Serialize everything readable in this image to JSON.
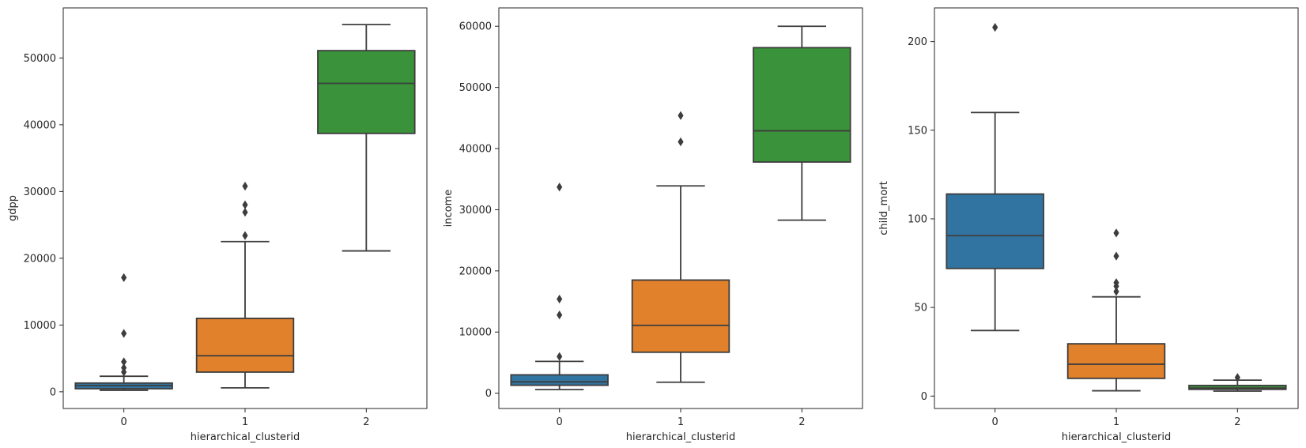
{
  "chart_data": [
    {
      "type": "box",
      "xlabel": "hierarchical_clusterid",
      "ylabel": "gdpp",
      "categories": [
        "0",
        "1",
        "2"
      ],
      "ylim": [
        -2500,
        57500
      ],
      "yticks": [
        0,
        10000,
        20000,
        30000,
        40000,
        50000
      ],
      "boxes": [
        {
          "category": "0",
          "color": "#3274a1",
          "whisker_low": 231,
          "q1": 465,
          "median": 932,
          "q3": 1310,
          "whisker_high": 2330,
          "outliers": [
            2960,
            3600,
            4500,
            8750,
            17100
          ]
        },
        {
          "category": "1",
          "color": "#e1812c",
          "whisker_low": 590,
          "q1": 2950,
          "median": 5400,
          "q3": 11000,
          "whisker_high": 22500,
          "outliers": [
            23400,
            26900,
            28000,
            30800
          ]
        },
        {
          "category": "2",
          "color": "#3a923a",
          "whisker_low": 21100,
          "q1": 38700,
          "median": 46200,
          "q3": 51100,
          "whisker_high": 55000,
          "outliers": []
        }
      ]
    },
    {
      "type": "box",
      "xlabel": "hierarchical_clusterid",
      "ylabel": "income",
      "categories": [
        "0",
        "1",
        "2"
      ],
      "ylim": [
        -2500,
        63000
      ],
      "yticks": [
        0,
        10000,
        20000,
        30000,
        40000,
        50000,
        60000
      ],
      "boxes": [
        {
          "category": "0",
          "color": "#3274a1",
          "whisker_low": 600,
          "q1": 1300,
          "median": 1850,
          "q3": 3000,
          "whisker_high": 5200,
          "outliers": [
            6000,
            12800,
            15400,
            33700
          ]
        },
        {
          "category": "1",
          "color": "#e1812c",
          "whisker_low": 1800,
          "q1": 6700,
          "median": 11100,
          "q3": 18500,
          "whisker_high": 33900,
          "outliers": [
            41100,
            45400
          ]
        },
        {
          "category": "2",
          "color": "#3a923a",
          "whisker_low": 28300,
          "q1": 37800,
          "median": 42900,
          "q3": 56500,
          "whisker_high": 60000,
          "outliers": []
        }
      ]
    },
    {
      "type": "box",
      "xlabel": "hierarchical_clusterid",
      "ylabel": "child_mort",
      "categories": [
        "0",
        "1",
        "2"
      ],
      "ylim": [
        -7,
        219
      ],
      "yticks": [
        0,
        50,
        100,
        150,
        200
      ],
      "boxes": [
        {
          "category": "0",
          "color": "#3274a1",
          "whisker_low": 37,
          "q1": 72,
          "median": 90.5,
          "q3": 114,
          "whisker_high": 160,
          "outliers": [
            208
          ]
        },
        {
          "category": "1",
          "color": "#e1812c",
          "whisker_low": 3,
          "q1": 10,
          "median": 18,
          "q3": 29.5,
          "whisker_high": 56,
          "outliers": [
            59,
            62,
            64,
            79,
            92
          ]
        },
        {
          "category": "2",
          "color": "#3a923a",
          "whisker_low": 2.8,
          "q1": 3.8,
          "median": 4.5,
          "q3": 6,
          "whisker_high": 9,
          "outliers": [
            10.5
          ]
        }
      ]
    }
  ]
}
